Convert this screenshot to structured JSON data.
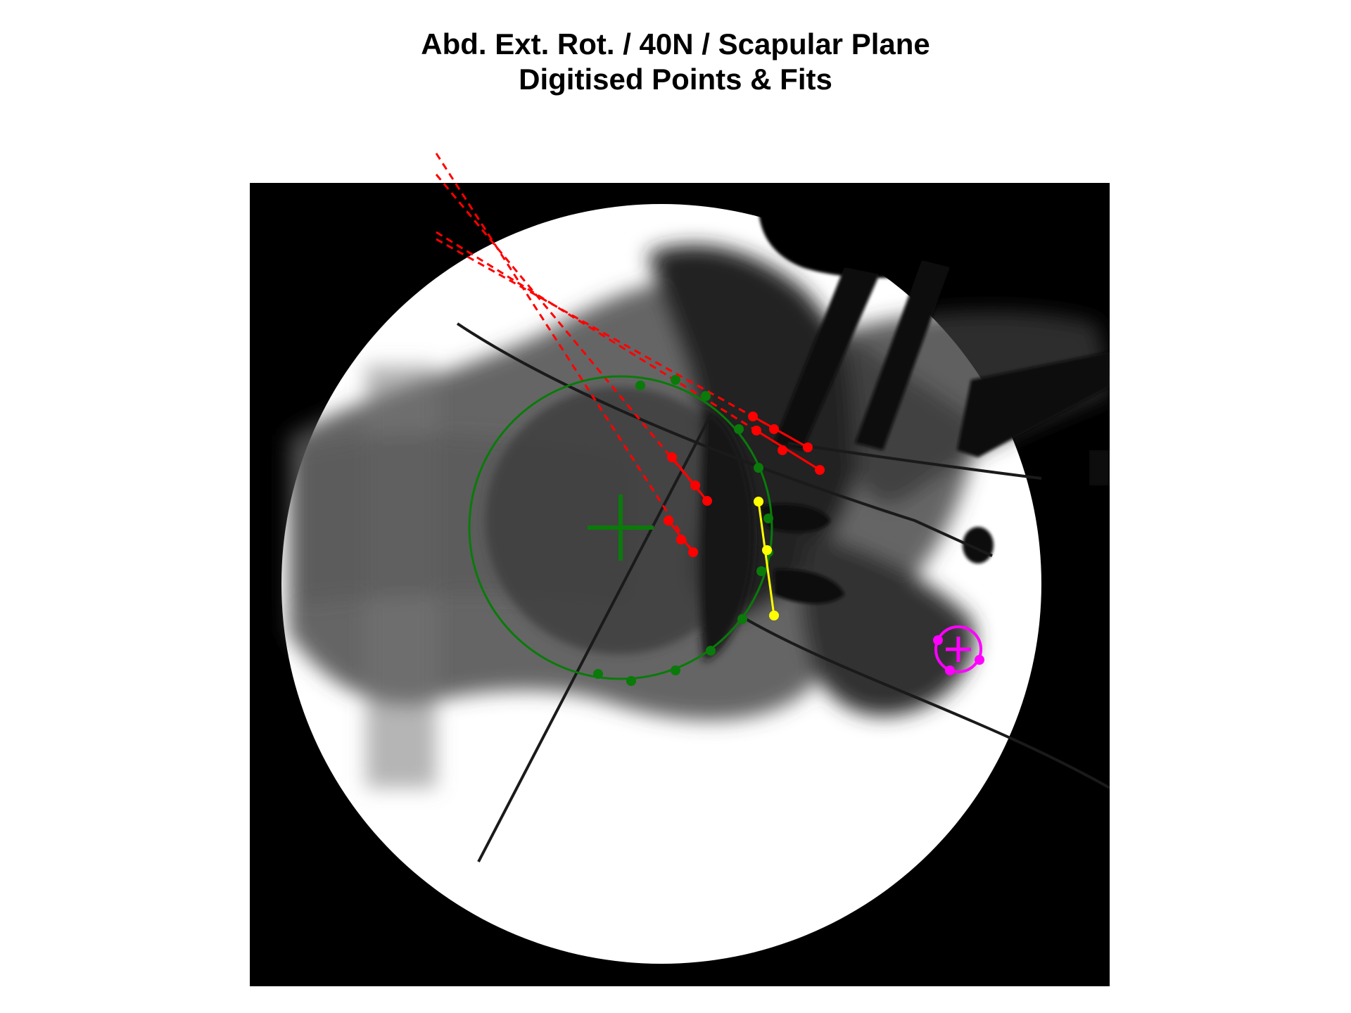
{
  "title": {
    "line1": "Abd. Ext. Rot. / 40N / Scapular Plane",
    "line2": "Digitised Points & Fits"
  },
  "image_description_colors": {
    "background": "#ffffff",
    "frame": "#000000",
    "field": "#ffffff",
    "tissue": "#2a2a2a"
  },
  "overlay_colors": {
    "humeral_head_fit": "#0a7a0a",
    "humeral_head_points": "#0a7a0a",
    "shaft_axes": "#ff0000",
    "glenoid": "#ffff00",
    "marker": "#ff00ff"
  },
  "overlays": {
    "humeral_head_circle": {
      "label": "",
      "visible": true
    },
    "shaft_lines": {
      "count": 4,
      "style": "dashed"
    },
    "glenoid_line": {
      "visible": true
    },
    "marker_circle": {
      "visible": true
    }
  }
}
